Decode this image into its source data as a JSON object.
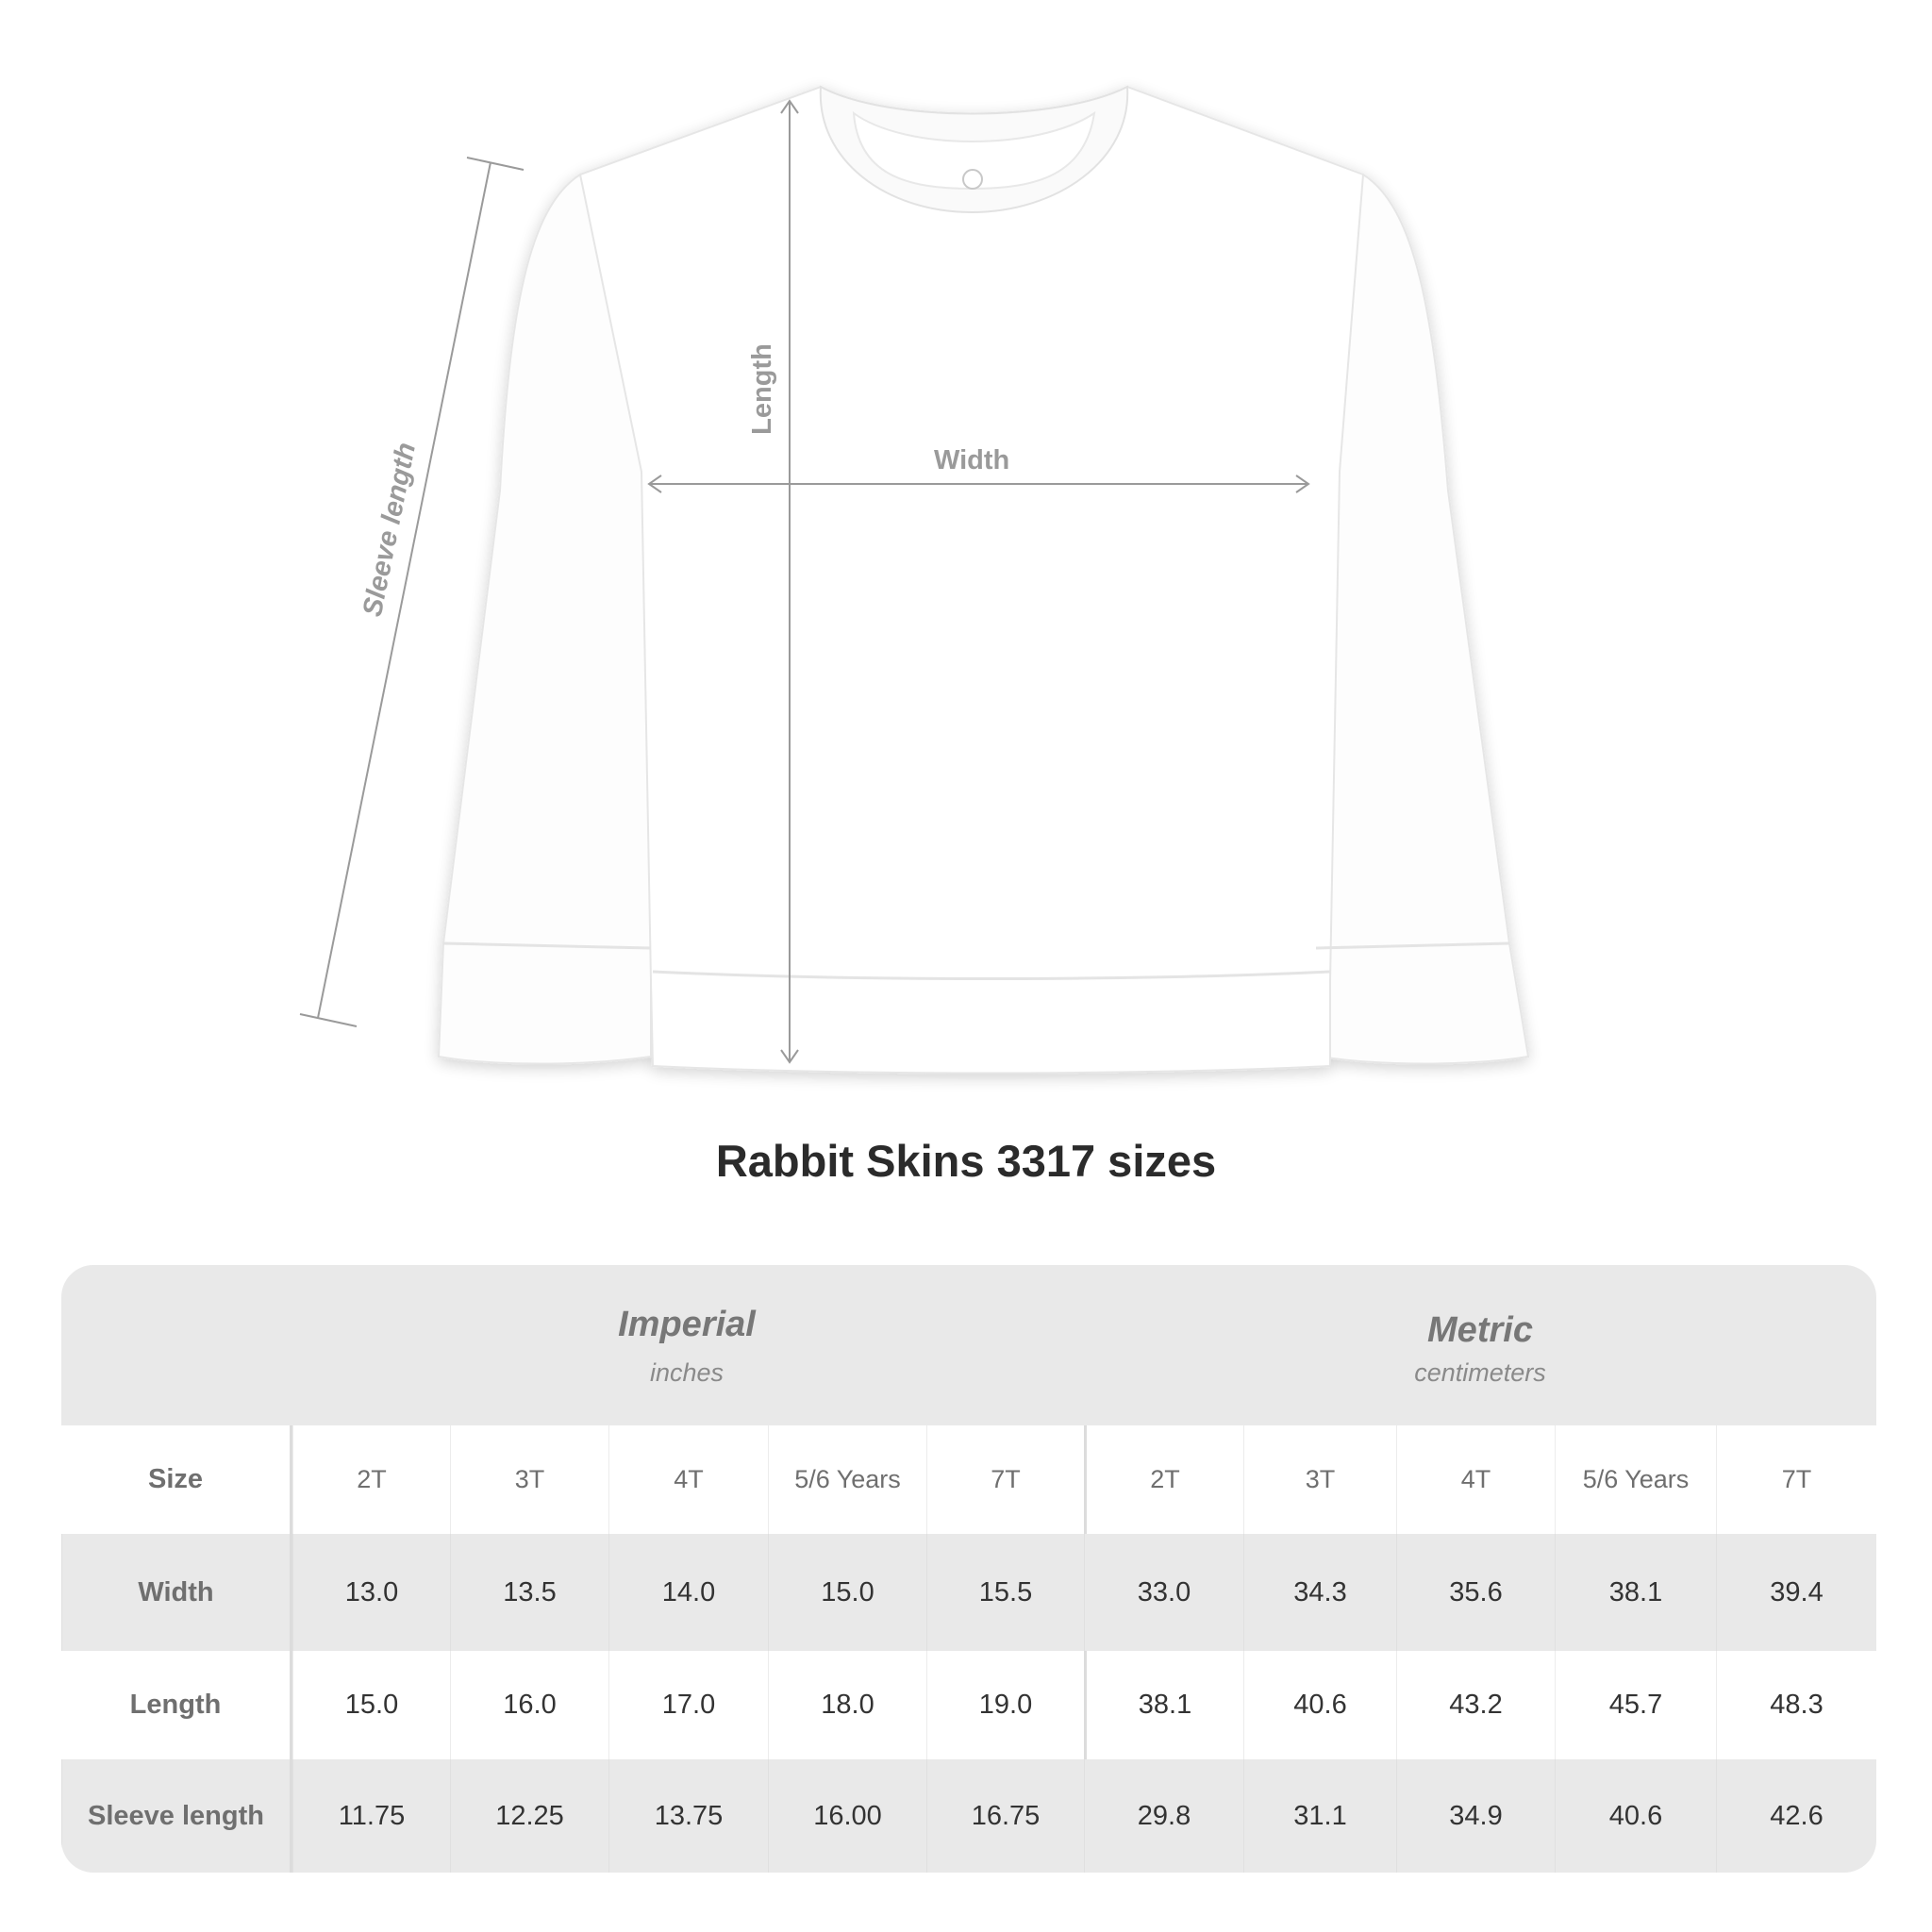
{
  "diagram": {
    "labels": {
      "length": "Length",
      "width": "Width",
      "sleeve_length": "Sleeve length"
    }
  },
  "title": "Rabbit Skins 3317 sizes",
  "table": {
    "imperial": {
      "title": "Imperial",
      "unit": "inches"
    },
    "metric": {
      "title": "Metric",
      "unit": "centimeters"
    },
    "header": {
      "label": "Size",
      "imperial": [
        "2T",
        "3T",
        "4T",
        "5/6 Years",
        "7T"
      ],
      "metric": [
        "2T",
        "3T",
        "4T",
        "5/6 Years",
        "7T"
      ]
    },
    "rows": [
      {
        "label": "Width",
        "imperial": [
          "13.0",
          "13.5",
          "14.0",
          "15.0",
          "15.5"
        ],
        "metric": [
          "33.0",
          "34.3",
          "35.6",
          "38.1",
          "39.4"
        ]
      },
      {
        "label": "Length",
        "imperial": [
          "15.0",
          "16.0",
          "17.0",
          "18.0",
          "19.0"
        ],
        "metric": [
          "38.1",
          "40.6",
          "43.2",
          "45.7",
          "48.3"
        ]
      },
      {
        "label": "Sleeve length",
        "imperial": [
          "11.75",
          "12.25",
          "13.75",
          "16.00",
          "16.75"
        ],
        "metric": [
          "29.8",
          "31.1",
          "34.9",
          "40.6",
          "42.6"
        ]
      }
    ]
  },
  "colors": {
    "band": "#e9e9e9",
    "label_text": "#6f6f6f",
    "value_text": "#333333",
    "measure_line": "#9a9a9a"
  }
}
